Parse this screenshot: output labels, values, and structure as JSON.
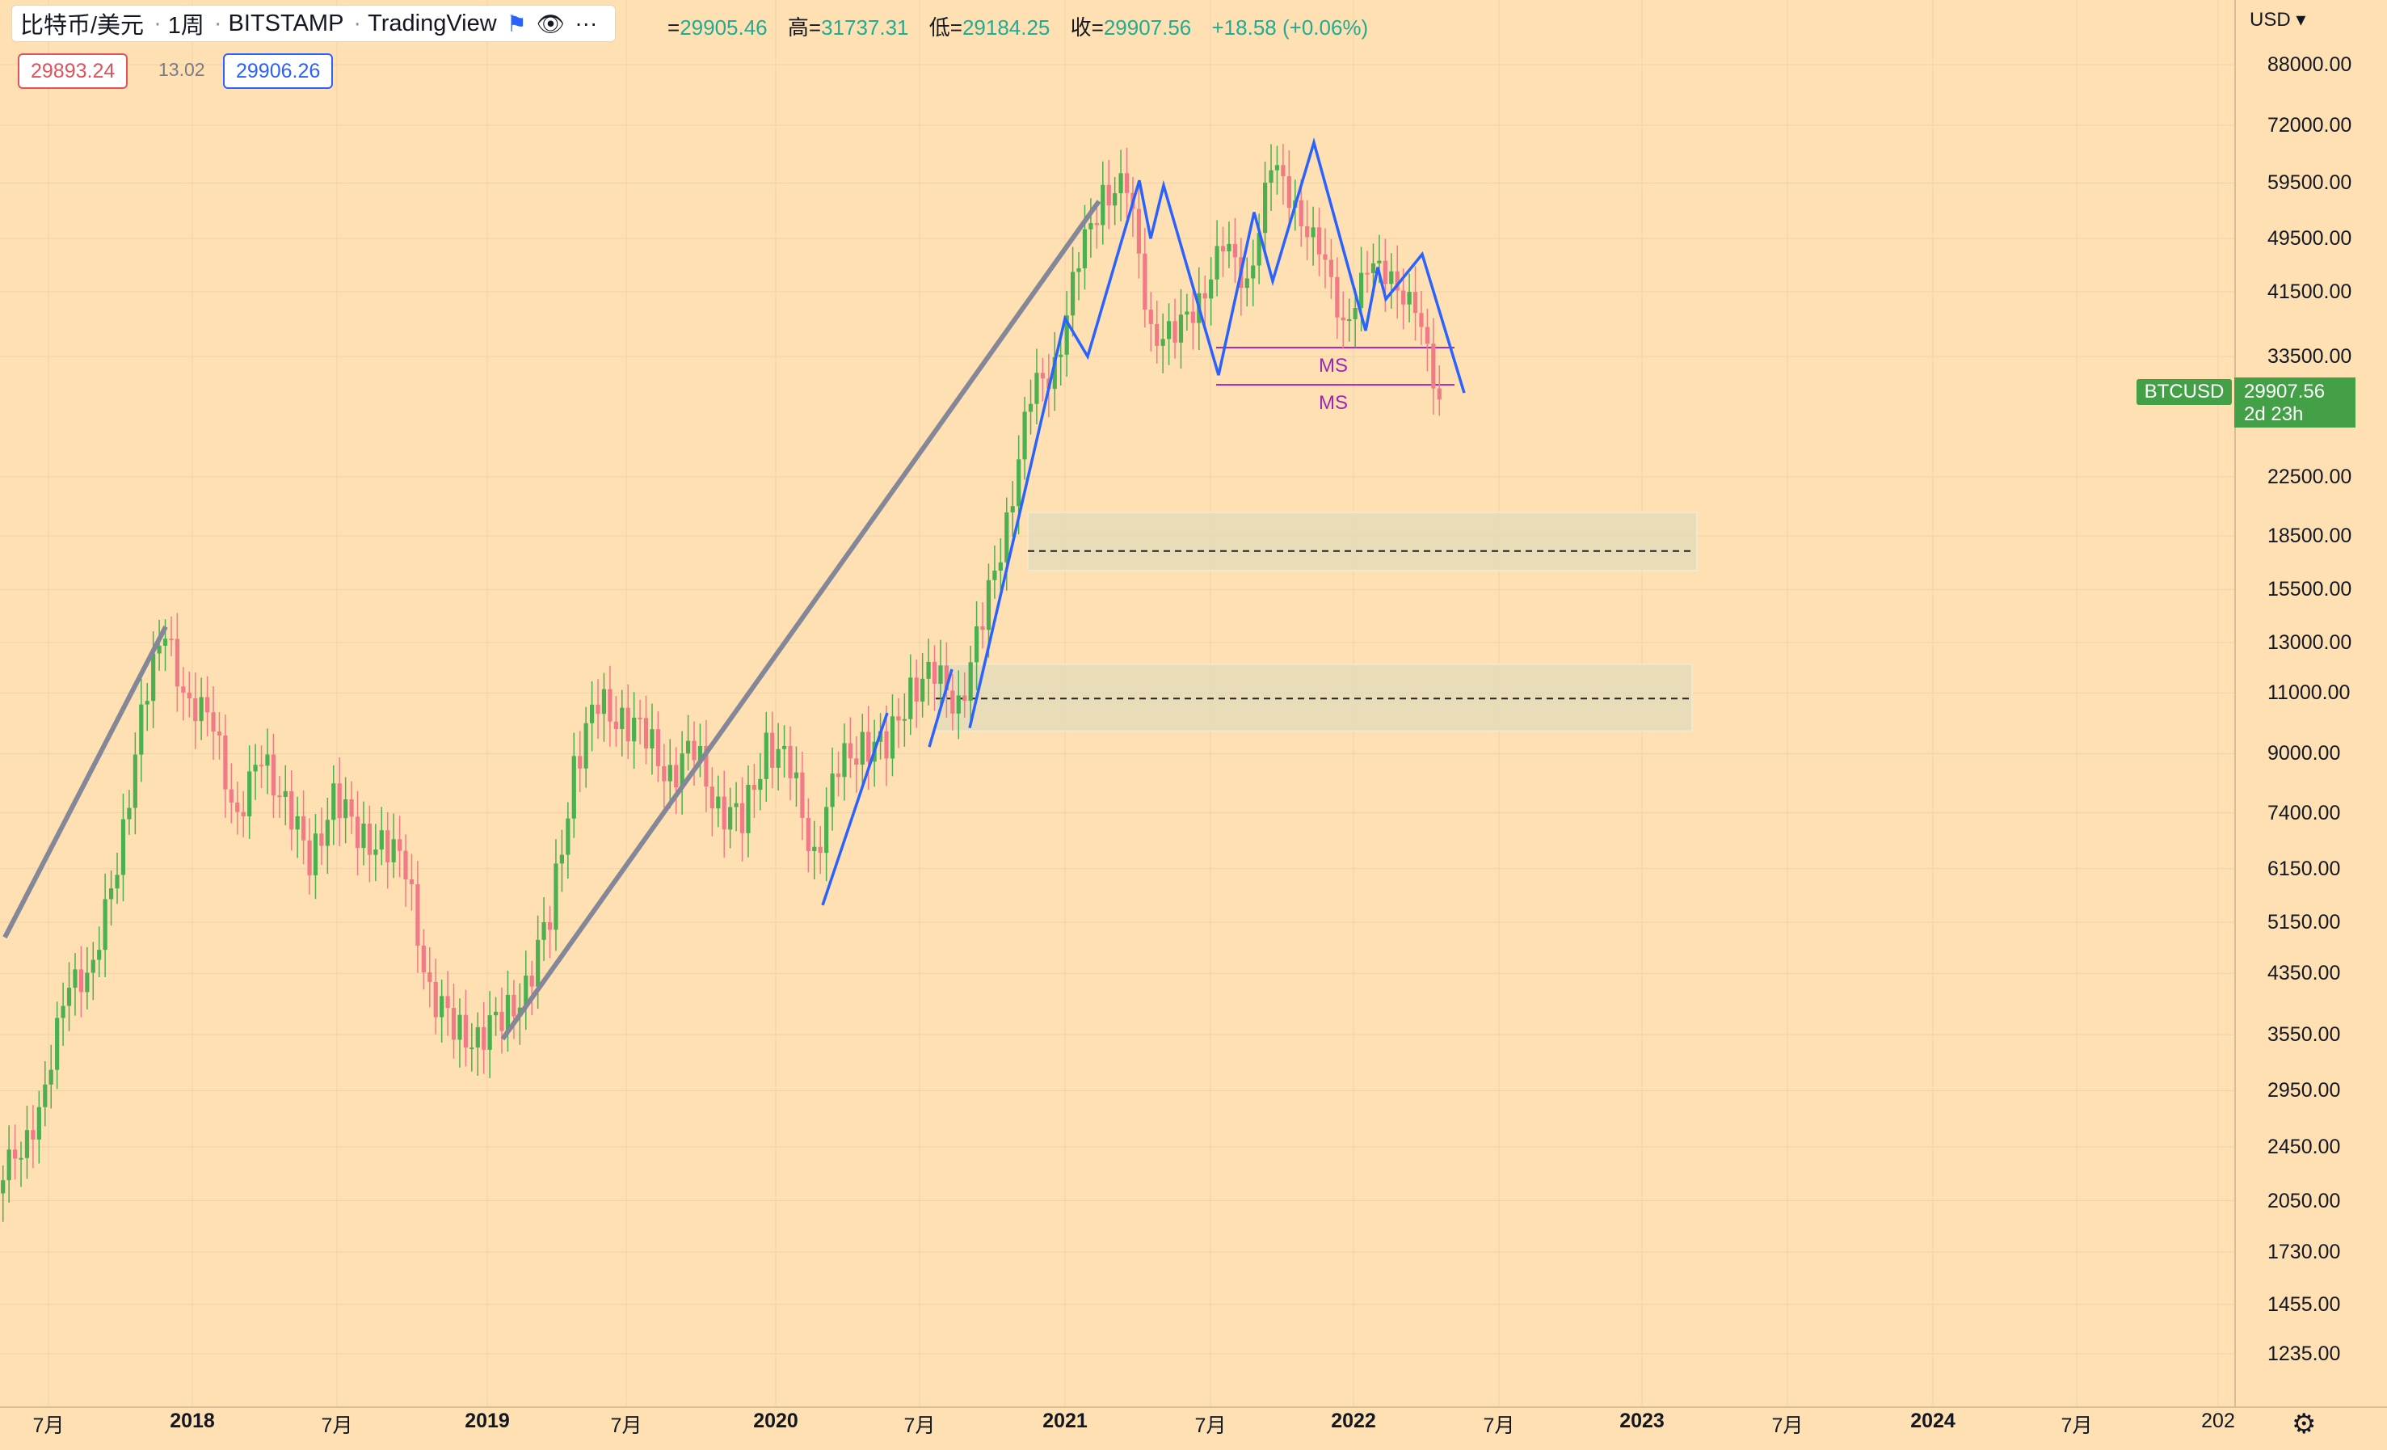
{
  "header": {
    "symbol": "比特币/美元",
    "interval": "1周",
    "exchange": "BITSTAMP",
    "platform": "TradingView",
    "flag_icon": "flag-icon",
    "eye_icon": "eye-icon",
    "more_icon": "more-icon"
  },
  "ohlc": {
    "open_label": "=",
    "open": "29905.46",
    "high_label": "高=",
    "high": "31737.31",
    "low_label": "低=",
    "low": "29184.25",
    "close_label": "收=",
    "close": "29907.56",
    "change": "+18.58 (+0.06%)"
  },
  "quote": {
    "bid": "29893.24",
    "spread": "13.02",
    "ask": "29906.26"
  },
  "price_axis": {
    "currency": "USD",
    "labels": [
      "88000.00",
      "72000.00",
      "59500.00",
      "49500.00",
      "41500.00",
      "33500.00",
      "22500.00",
      "18500.00",
      "15500.00",
      "13000.00",
      "11000.00",
      "9000.00",
      "7400.00",
      "6150.00",
      "5150.00",
      "4350.00",
      "3550.00",
      "2950.00",
      "2450.00",
      "2050.00",
      "1730.00",
      "1455.00",
      "1235.00"
    ]
  },
  "last_price_tag": {
    "symbol": "BTCUSD",
    "price": "29907.56",
    "countdown": "2d 23h"
  },
  "time_axis": {
    "labels": [
      "7月",
      "2018",
      "7月",
      "2019",
      "7月",
      "2020",
      "7月",
      "2021",
      "7月",
      "2022",
      "7月",
      "2023",
      "7月",
      "2024",
      "7月",
      "202"
    ],
    "settings_icon": "gear-icon"
  },
  "annotations": {
    "ms_upper": "MS",
    "ms_lower": "MS"
  },
  "chart_data": {
    "type": "candlestick",
    "y_scale": "log",
    "ylim": [
      1100,
      100000
    ],
    "xlim": [
      "2017-05",
      "2024-12"
    ],
    "up_color": "#4caf50",
    "down_color": "#f07b87",
    "trend_line_color": "#848797",
    "zigzag_color": "#2962ff",
    "zone_line_color": "#9c27b0",
    "close_series": [
      {
        "date": "2017-05",
        "value": 2100
      },
      {
        "date": "2017-06",
        "value": 2500
      },
      {
        "date": "2017-07",
        "value": 2850
      },
      {
        "date": "2017-08",
        "value": 4400
      },
      {
        "date": "2017-09",
        "value": 4300
      },
      {
        "date": "2017-10",
        "value": 6400
      },
      {
        "date": "2017-11",
        "value": 10000
      },
      {
        "date": "2017-12",
        "value": 14000
      },
      {
        "date": "2018-01",
        "value": 10200
      },
      {
        "date": "2018-02",
        "value": 10300
      },
      {
        "date": "2018-03",
        "value": 7000
      },
      {
        "date": "2018-04",
        "value": 9200
      },
      {
        "date": "2018-05",
        "value": 7500
      },
      {
        "date": "2018-06",
        "value": 6400
      },
      {
        "date": "2018-07",
        "value": 7700
      },
      {
        "date": "2018-08",
        "value": 7000
      },
      {
        "date": "2018-09",
        "value": 6600
      },
      {
        "date": "2018-10",
        "value": 6300
      },
      {
        "date": "2018-11",
        "value": 4000
      },
      {
        "date": "2018-12",
        "value": 3700
      },
      {
        "date": "2019-01",
        "value": 3450
      },
      {
        "date": "2019-02",
        "value": 3800
      },
      {
        "date": "2019-03",
        "value": 4100
      },
      {
        "date": "2019-04",
        "value": 5300
      },
      {
        "date": "2019-05",
        "value": 8500
      },
      {
        "date": "2019-06",
        "value": 10800
      },
      {
        "date": "2019-07",
        "value": 10000
      },
      {
        "date": "2019-08",
        "value": 9600
      },
      {
        "date": "2019-09",
        "value": 8300
      },
      {
        "date": "2019-10",
        "value": 9200
      },
      {
        "date": "2019-11",
        "value": 7500
      },
      {
        "date": "2019-12",
        "value": 7200
      },
      {
        "date": "2020-01",
        "value": 9300
      },
      {
        "date": "2020-02",
        "value": 8600
      },
      {
        "date": "2020-03",
        "value": 6400
      },
      {
        "date": "2020-04",
        "value": 8600
      },
      {
        "date": "2020-05",
        "value": 9400
      },
      {
        "date": "2020-06",
        "value": 9100
      },
      {
        "date": "2020-07",
        "value": 11300
      },
      {
        "date": "2020-08",
        "value": 11600
      },
      {
        "date": "2020-09",
        "value": 10700
      },
      {
        "date": "2020-10",
        "value": 13800
      },
      {
        "date": "2020-11",
        "value": 19700
      },
      {
        "date": "2020-12",
        "value": 29000
      },
      {
        "date": "2021-01",
        "value": 33100
      },
      {
        "date": "2021-02",
        "value": 45200
      },
      {
        "date": "2021-03",
        "value": 58800
      },
      {
        "date": "2021-04",
        "value": 57700
      },
      {
        "date": "2021-05",
        "value": 37300
      },
      {
        "date": "2021-06",
        "value": 35000
      },
      {
        "date": "2021-07",
        "value": 41500
      },
      {
        "date": "2021-08",
        "value": 47100
      },
      {
        "date": "2021-09",
        "value": 43800
      },
      {
        "date": "2021-10",
        "value": 61300
      },
      {
        "date": "2021-11",
        "value": 57000
      },
      {
        "date": "2021-12",
        "value": 46200
      },
      {
        "date": "2022-01",
        "value": 38500
      },
      {
        "date": "2022-02",
        "value": 43200
      },
      {
        "date": "2022-03",
        "value": 45500
      },
      {
        "date": "2022-04",
        "value": 37700
      },
      {
        "date": "2022-05",
        "value": 29900
      }
    ],
    "zones": [
      {
        "label": "MS",
        "low": 30500,
        "high": 34500
      },
      {
        "low": 16500,
        "high": 20000,
        "mid": 17600
      },
      {
        "low": 9700,
        "high": 12100,
        "mid": 10800
      }
    ]
  }
}
